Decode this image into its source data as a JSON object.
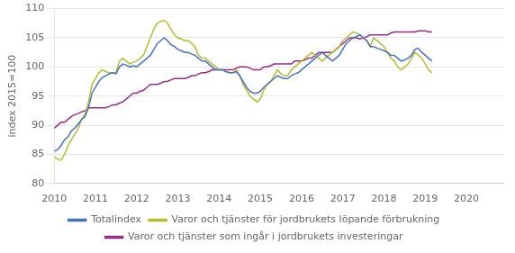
{
  "chart_data": {
    "type": "line",
    "ylabel": "index 2015=100",
    "x": [
      2010,
      2010.0833,
      2010.1667,
      2010.25,
      2010.3333,
      2010.4167,
      2010.5,
      2010.5833,
      2010.6667,
      2010.75,
      2010.8333,
      2010.9167,
      2011,
      2011.0833,
      2011.1667,
      2011.25,
      2011.3333,
      2011.4167,
      2011.5,
      2011.5833,
      2011.6667,
      2011.75,
      2011.8333,
      2011.9167,
      2012,
      2012.0833,
      2012.1667,
      2012.25,
      2012.3333,
      2012.4167,
      2012.5,
      2012.5833,
      2012.6667,
      2012.75,
      2012.8333,
      2012.9167,
      2013,
      2013.0833,
      2013.1667,
      2013.25,
      2013.3333,
      2013.4167,
      2013.5,
      2013.5833,
      2013.6667,
      2013.75,
      2013.8333,
      2013.9167,
      2014,
      2014.0833,
      2014.1667,
      2014.25,
      2014.3333,
      2014.4167,
      2014.5,
      2014.5833,
      2014.6667,
      2014.75,
      2014.8333,
      2014.9167,
      2015,
      2015.0833,
      2015.1667,
      2015.25,
      2015.3333,
      2015.4167,
      2015.5,
      2015.5833,
      2015.6667,
      2015.75,
      2015.8333,
      2015.9167,
      2016,
      2016.0833,
      2016.1667,
      2016.25,
      2016.3333,
      2016.4167,
      2016.5,
      2016.5833,
      2016.6667,
      2016.75,
      2016.8333,
      2016.9167,
      2017,
      2017.0833,
      2017.1667,
      2017.25,
      2017.3333,
      2017.4167,
      2017.5,
      2017.5833,
      2017.6667,
      2017.75,
      2017.8333,
      2017.9167,
      2018,
      2018.0833,
      2018.1667,
      2018.25,
      2018.3333,
      2018.4167,
      2018.5,
      2018.5833,
      2018.6667,
      2018.75,
      2018.8333,
      2018.9167,
      2019,
      2019.0833,
      2019.1667
    ],
    "series": [
      {
        "name": "Totalindex",
        "color": "#4472c4",
        "values": [
          85.5,
          85.8,
          86.5,
          87.5,
          88.0,
          89.0,
          89.5,
          90.2,
          91.0,
          91.5,
          93.0,
          95.5,
          96.5,
          97.5,
          98.2,
          98.5,
          98.8,
          99.0,
          98.8,
          100.0,
          100.5,
          100.3,
          100.0,
          100.2,
          100.0,
          100.5,
          101.0,
          101.5,
          102.0,
          103.0,
          104.0,
          104.5,
          105.0,
          104.5,
          103.8,
          103.5,
          103.0,
          102.8,
          102.5,
          102.5,
          102.2,
          102.0,
          101.5,
          101.0,
          101.0,
          100.5,
          100.0,
          99.5,
          99.5,
          99.5,
          99.2,
          99.0,
          99.0,
          99.2,
          98.5,
          97.5,
          96.5,
          95.8,
          95.5,
          95.5,
          95.8,
          96.5,
          97.0,
          97.5,
          98.0,
          98.5,
          98.2,
          98.0,
          98.0,
          98.5,
          98.8,
          99.0,
          99.5,
          100.0,
          100.5,
          101.0,
          101.5,
          102.0,
          102.5,
          102.0,
          101.5,
          101.0,
          101.5,
          102.0,
          103.0,
          104.0,
          104.5,
          105.0,
          105.2,
          105.5,
          105.0,
          104.5,
          103.5,
          103.5,
          103.2,
          103.0,
          102.8,
          102.5,
          102.0,
          102.0,
          101.5,
          101.0,
          101.2,
          101.5,
          102.0,
          103.0,
          103.2,
          102.5,
          102.0,
          101.5,
          101.0
        ]
      },
      {
        "name": "Varor och tjänster för jordbrukets löpande förbrukning",
        "color": "#b5bd2b",
        "values": [
          84.5,
          84.2,
          84.0,
          85.0,
          86.5,
          87.5,
          88.5,
          89.5,
          91.0,
          92.0,
          94.0,
          97.0,
          98.0,
          99.0,
          99.5,
          99.2,
          99.0,
          99.0,
          99.0,
          101.0,
          101.5,
          101.0,
          100.5,
          100.8,
          101.0,
          101.5,
          102.0,
          103.5,
          105.0,
          106.5,
          107.5,
          107.8,
          108.0,
          107.5,
          106.5,
          105.5,
          105.0,
          104.8,
          104.5,
          104.5,
          104.0,
          103.5,
          102.0,
          101.5,
          101.5,
          101.0,
          100.5,
          100.0,
          99.5,
          99.5,
          99.2,
          99.0,
          99.0,
          99.5,
          98.5,
          97.0,
          96.0,
          95.0,
          94.5,
          94.0,
          94.5,
          96.0,
          97.0,
          97.5,
          98.5,
          99.5,
          98.8,
          98.5,
          98.5,
          99.5,
          100.0,
          100.5,
          101.0,
          101.5,
          102.0,
          102.5,
          102.0,
          101.5,
          101.0,
          101.5,
          102.0,
          102.5,
          103.0,
          103.5,
          104.5,
          105.0,
          105.5,
          106.0,
          105.8,
          105.5,
          105.0,
          104.5,
          103.5,
          105.0,
          104.5,
          104.0,
          103.5,
          102.5,
          101.5,
          101.0,
          100.0,
          99.5,
          100.0,
          100.5,
          101.5,
          102.5,
          102.0,
          101.5,
          100.5,
          99.5,
          99.0
        ]
      },
      {
        "name": "Varor och tjänster som ingår i jordbrukets investeringar",
        "color": "#9b2b8a",
        "values": [
          89.5,
          90.0,
          90.5,
          90.5,
          91.0,
          91.5,
          91.8,
          92.0,
          92.3,
          92.5,
          93.0,
          93.0,
          93.0,
          93.0,
          93.0,
          93.0,
          93.2,
          93.5,
          93.5,
          93.8,
          94.0,
          94.5,
          95.0,
          95.5,
          95.5,
          95.8,
          96.0,
          96.5,
          97.0,
          97.0,
          97.0,
          97.2,
          97.5,
          97.5,
          97.8,
          98.0,
          98.0,
          98.0,
          98.0,
          98.2,
          98.5,
          98.5,
          98.8,
          99.0,
          99.0,
          99.2,
          99.5,
          99.5,
          99.5,
          99.5,
          99.5,
          99.5,
          99.5,
          99.8,
          100.0,
          100.0,
          100.0,
          99.8,
          99.5,
          99.5,
          99.5,
          100.0,
          100.0,
          100.2,
          100.5,
          100.5,
          100.5,
          100.5,
          100.5,
          100.5,
          101.0,
          101.0,
          101.0,
          101.2,
          101.5,
          101.5,
          102.0,
          102.5,
          102.5,
          102.5,
          102.5,
          102.5,
          103.0,
          103.5,
          104.0,
          104.5,
          105.0,
          105.0,
          105.0,
          104.8,
          105.0,
          105.2,
          105.5,
          105.5,
          105.5,
          105.5,
          105.5,
          105.5,
          105.8,
          106.0,
          106.0,
          106.0,
          106.0,
          106.0,
          106.0,
          106.0,
          106.2,
          106.2,
          106.2,
          106.0,
          106.0
        ]
      }
    ],
    "xlim": [
      2010.0,
      2020.917
    ],
    "xticks": [
      2010,
      2011,
      2012,
      2013,
      2014,
      2015,
      2016,
      2017,
      2018,
      2019,
      2020
    ],
    "ylim": [
      80,
      110
    ],
    "yticks": [
      80,
      85,
      90,
      95,
      100,
      105,
      110
    ],
    "grid": "y",
    "legend": "bottom"
  }
}
